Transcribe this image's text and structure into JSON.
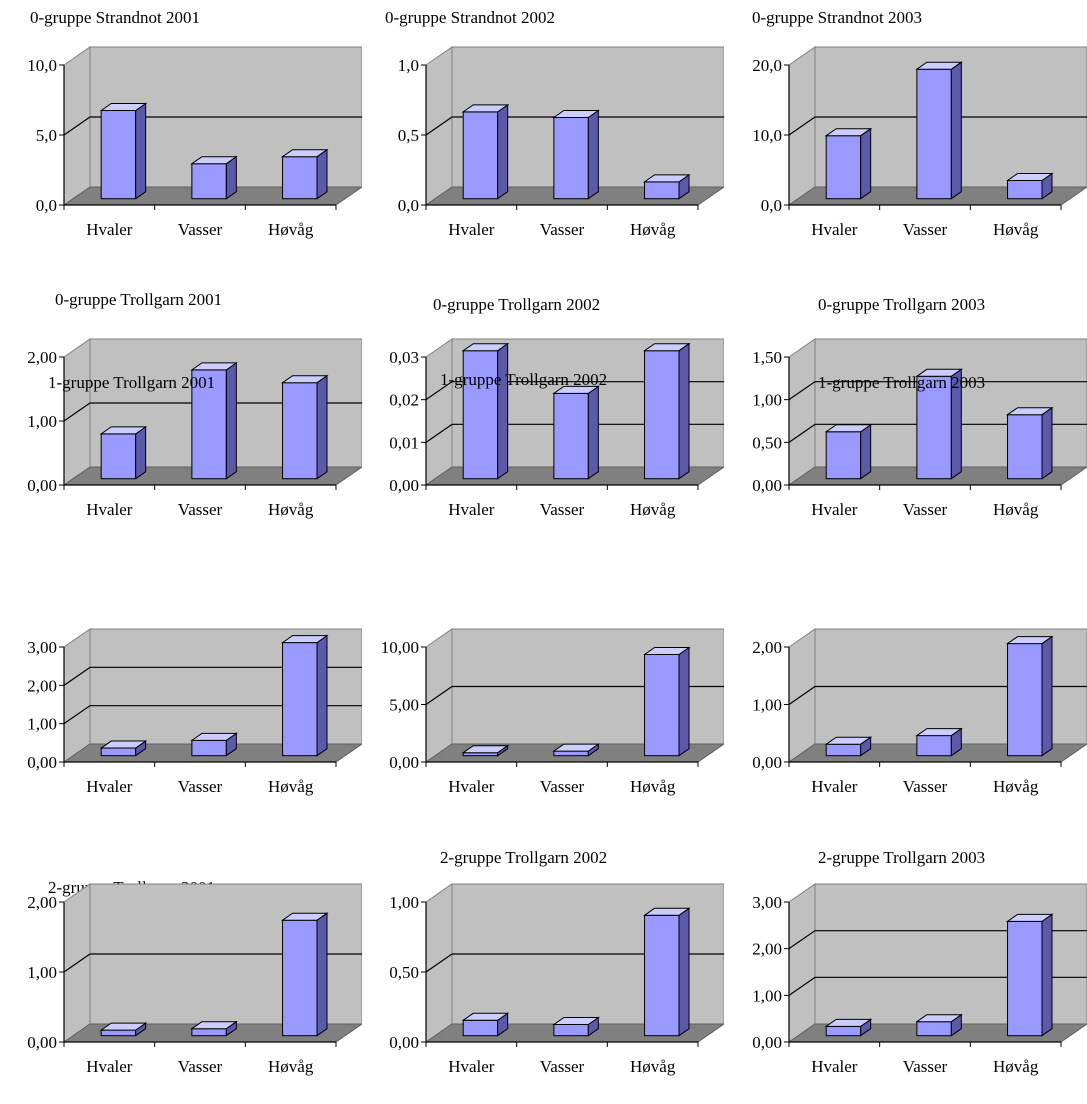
{
  "chart_data": [
    {
      "type": "bar",
      "title": "0-gruppe Strandnot 2001",
      "categories": [
        "Hvaler",
        "Vasser",
        "Høvåg"
      ],
      "values": [
        6.3,
        2.5,
        3.0
      ],
      "ylim": [
        0,
        10
      ],
      "yticks": [
        "0,0",
        "5,0",
        "10,0"
      ],
      "colors": {
        "bar": "#9999ff",
        "side": "#5a5aa8",
        "top": "#ccccff",
        "wall": "#c0c0c0",
        "floor": "#808080"
      }
    },
    {
      "type": "bar",
      "title": "0-gruppe Strandnot 2002",
      "categories": [
        "Hvaler",
        "Vasser",
        "Høvåg"
      ],
      "values": [
        0.62,
        0.58,
        0.12
      ],
      "ylim": [
        0,
        1
      ],
      "yticks": [
        "0,0",
        "0,5",
        "1,0"
      ],
      "colors": {
        "bar": "#9999ff",
        "side": "#5a5aa8",
        "top": "#ccccff",
        "wall": "#c0c0c0",
        "floor": "#808080"
      }
    },
    {
      "type": "bar",
      "title": "0-gruppe Strandnot 2003",
      "categories": [
        "Hvaler",
        "Vasser",
        "Høvåg"
      ],
      "values": [
        9.0,
        18.5,
        2.6
      ],
      "ylim": [
        0,
        20
      ],
      "yticks": [
        "0,0",
        "10,0",
        "20,0"
      ],
      "colors": {
        "bar": "#9999ff",
        "side": "#5a5aa8",
        "top": "#ccccff",
        "wall": "#c0c0c0",
        "floor": "#808080"
      }
    },
    {
      "type": "bar",
      "title": "0-gruppe Trollgarn  2001",
      "categories": [
        "Hvaler",
        "Vasser",
        "Høvåg"
      ],
      "values": [
        0.7,
        1.7,
        1.5
      ],
      "ylim": [
        0,
        2
      ],
      "yticks": [
        "0,00",
        "1,00",
        "2,00"
      ],
      "colors": {
        "bar": "#9999ff",
        "side": "#5a5aa8",
        "top": "#ccccff",
        "wall": "#c0c0c0",
        "floor": "#808080"
      }
    },
    {
      "type": "bar",
      "title": "0-gruppe Trollgarn 2002",
      "categories": [
        "Hvaler",
        "Vasser",
        "Høvåg"
      ],
      "values": [
        0.03,
        0.02,
        0.03
      ],
      "ylim": [
        0,
        0.03
      ],
      "yticks": [
        "0,00",
        "0,01",
        "0,02",
        "0,03"
      ],
      "colors": {
        "bar": "#9999ff",
        "side": "#5a5aa8",
        "top": "#ccccff",
        "wall": "#c0c0c0",
        "floor": "#808080"
      }
    },
    {
      "type": "bar",
      "title": "0-gruppe Trollgarn 2003",
      "categories": [
        "Hvaler",
        "Vasser",
        "Høvåg"
      ],
      "values": [
        0.55,
        1.2,
        0.75
      ],
      "ylim": [
        0,
        1.5
      ],
      "yticks": [
        "0,00",
        "0,50",
        "1,00",
        "1,50"
      ],
      "colors": {
        "bar": "#9999ff",
        "side": "#5a5aa8",
        "top": "#ccccff",
        "wall": "#c0c0c0",
        "floor": "#808080"
      }
    },
    {
      "type": "bar",
      "title": "1-gruppe Trollgarn 2001",
      "categories": [
        "Hvaler",
        "Vasser",
        "Høvåg"
      ],
      "values": [
        0.2,
        0.4,
        2.95
      ],
      "ylim": [
        0,
        3
      ],
      "yticks": [
        "0,00",
        "1,00",
        "2,00",
        "3,00"
      ],
      "colors": {
        "bar": "#9999ff",
        "side": "#5a5aa8",
        "top": "#ccccff",
        "wall": "#c0c0c0",
        "floor": "#808080"
      }
    },
    {
      "type": "bar",
      "title": "1-gruppe Trollgarn 2002",
      "categories": [
        "Hvaler",
        "Vasser",
        "Høvåg"
      ],
      "values": [
        0.2,
        0.4,
        8.8
      ],
      "ylim": [
        0,
        10
      ],
      "yticks": [
        "0,00",
        "5,00",
        "10,00"
      ],
      "colors": {
        "bar": "#9999ff",
        "side": "#5a5aa8",
        "top": "#ccccff",
        "wall": "#c0c0c0",
        "floor": "#808080"
      }
    },
    {
      "type": "bar",
      "title": "1-gruppe Trollgarn 2003",
      "categories": [
        "Hvaler",
        "Vasser",
        "Høvåg"
      ],
      "values": [
        0.2,
        0.35,
        1.95
      ],
      "ylim": [
        0,
        2
      ],
      "yticks": [
        "0,00",
        "1,00",
        "2,00"
      ],
      "colors": {
        "bar": "#9999ff",
        "side": "#5a5aa8",
        "top": "#ccccff",
        "wall": "#c0c0c0",
        "floor": "#808080"
      }
    },
    {
      "type": "bar",
      "title": "2-gruppe Trollgarn 2001",
      "categories": [
        "Hvaler",
        "Vasser",
        "Høvåg"
      ],
      "values": [
        0.08,
        0.1,
        1.65
      ],
      "ylim": [
        0,
        2
      ],
      "yticks": [
        "0,00",
        "1,00",
        "2,00"
      ],
      "colors": {
        "bar": "#9999ff",
        "side": "#5a5aa8",
        "top": "#ccccff",
        "wall": "#c0c0c0",
        "floor": "#808080"
      }
    },
    {
      "type": "bar",
      "title": "2-gruppe Trollgarn 2002",
      "categories": [
        "Hvaler",
        "Vasser",
        "Høvåg"
      ],
      "values": [
        0.11,
        0.08,
        0.86
      ],
      "ylim": [
        0,
        1
      ],
      "yticks": [
        "0,00",
        "0,50",
        "1,00"
      ],
      "colors": {
        "bar": "#9999ff",
        "side": "#5a5aa8",
        "top": "#ccccff",
        "wall": "#c0c0c0",
        "floor": "#808080"
      }
    },
    {
      "type": "bar",
      "title": "2-gruppe Trollgarn 2003",
      "categories": [
        "Hvaler",
        "Vasser",
        "Høvåg"
      ],
      "values": [
        0.2,
        0.3,
        2.45
      ],
      "ylim": [
        0,
        3
      ],
      "yticks": [
        "0,00",
        "1,00",
        "2,00",
        "3,00"
      ],
      "colors": {
        "bar": "#9999ff",
        "side": "#5a5aa8",
        "top": "#ccccff",
        "wall": "#c0c0c0",
        "floor": "#808080"
      }
    }
  ]
}
